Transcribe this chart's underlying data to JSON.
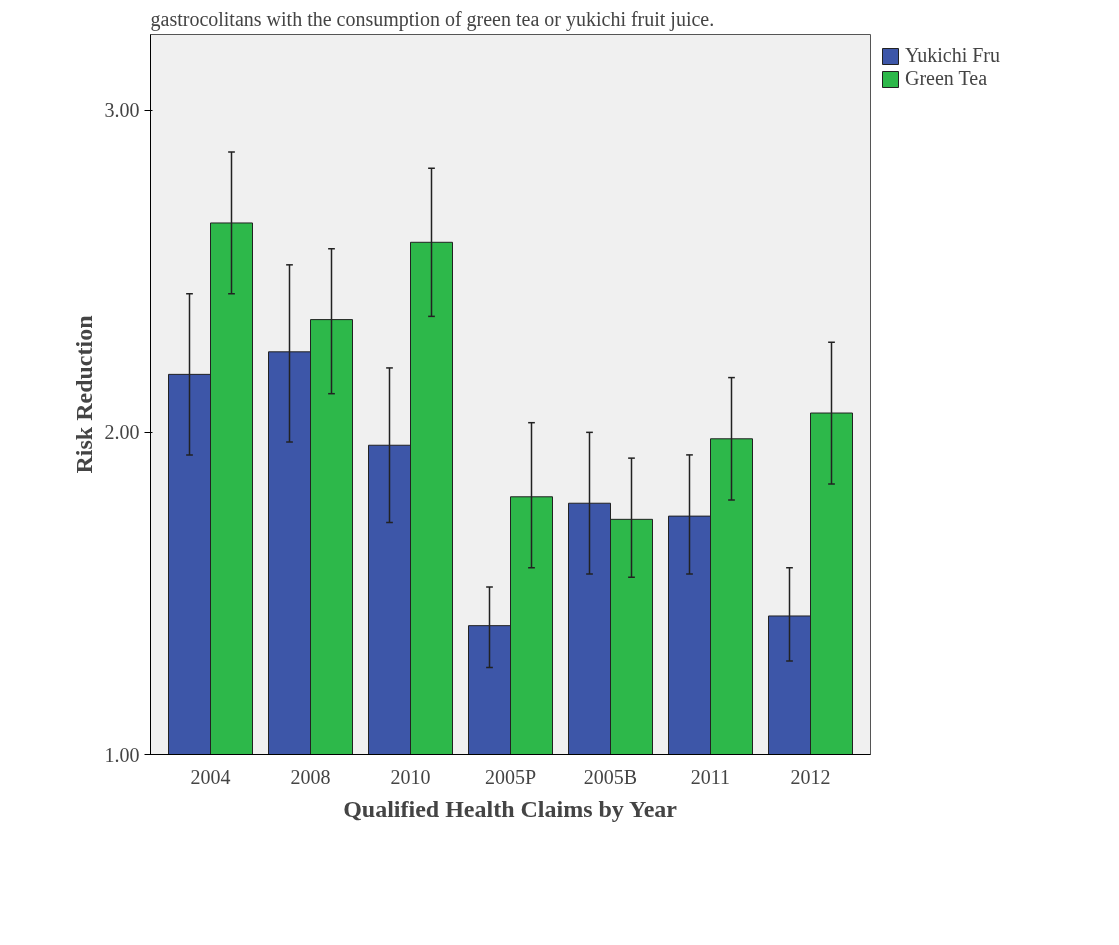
{
  "chart_data": {
    "type": "bar",
    "title": "gastrocolitans with the consumption of green tea or yukichi fruit juice.",
    "xlabel": "Qualified Health Claims by Year",
    "ylabel": "Risk Reduction",
    "categories": [
      "2004",
      "2008",
      "2010",
      "2005P",
      "2005B",
      "2011",
      "2012"
    ],
    "series": [
      {
        "name": "Yukichi Fru",
        "color": "#3d56a8",
        "values": [
          2.18,
          2.25,
          1.96,
          1.4,
          1.78,
          1.74,
          1.43
        ],
        "errors": [
          [
            1.93,
            2.43
          ],
          [
            1.97,
            2.52
          ],
          [
            1.72,
            2.2
          ],
          [
            1.27,
            1.52
          ],
          [
            1.56,
            2.0
          ],
          [
            1.56,
            1.93
          ],
          [
            1.29,
            1.58
          ]
        ]
      },
      {
        "name": "Green Tea",
        "color": "#2db84a",
        "values": [
          2.65,
          2.35,
          2.59,
          1.8,
          1.73,
          1.98,
          2.06
        ],
        "errors": [
          [
            2.43,
            2.87
          ],
          [
            2.12,
            2.57
          ],
          [
            2.36,
            2.82
          ],
          [
            1.58,
            2.03
          ],
          [
            1.55,
            1.92
          ],
          [
            1.79,
            2.17
          ],
          [
            1.84,
            2.28
          ]
        ]
      }
    ],
    "ylim": [
      1.0,
      3.235
    ],
    "yticks": [
      {
        "value": 1,
        "label": "1.00"
      },
      {
        "value": 2,
        "label": "2.00"
      },
      {
        "value": 3,
        "label": "3.00"
      }
    ],
    "grid": false,
    "legend": "top right"
  }
}
